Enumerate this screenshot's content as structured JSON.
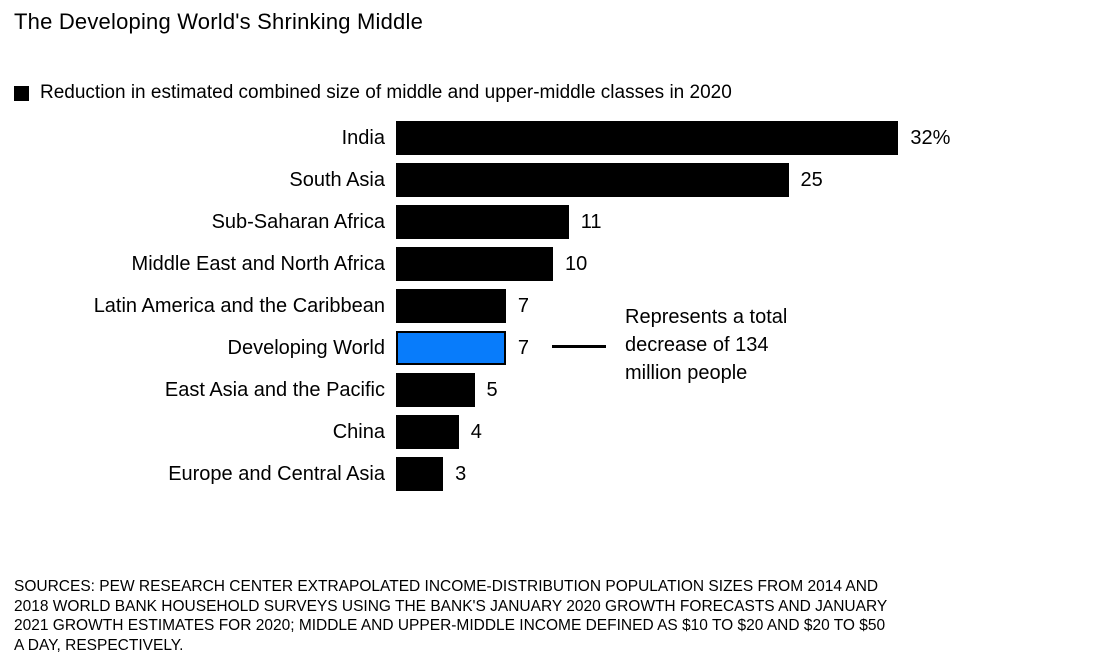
{
  "header": {
    "title": "The Developing World's Shrinking Middle"
  },
  "legend": {
    "swatch_color": "#000000",
    "label": "Reduction in estimated combined size of middle and upper-middle classes in 2020"
  },
  "chart_data": {
    "type": "bar",
    "orientation": "horizontal",
    "title": "The Developing World's Shrinking Middle",
    "legend_label": "Reduction in estimated combined size of middle and upper-middle classes in 2020",
    "unit": "percent",
    "categories": [
      "India",
      "South Asia",
      "Sub-Saharan Africa",
      "Middle East and North Africa",
      "Latin America and the Caribbean",
      "Developing World",
      "East Asia and the Pacific",
      "China",
      "Europe and Central Asia"
    ],
    "values": [
      32,
      25,
      11,
      10,
      7,
      7,
      5,
      4,
      3
    ],
    "value_labels": [
      "32%",
      "25",
      "11",
      "10",
      "7",
      "7",
      "5",
      "4",
      "3"
    ],
    "xlim": [
      0,
      32
    ],
    "grid": false,
    "legend_position": "top-left",
    "bar_color": "#000000",
    "highlight": {
      "category": "Developing World",
      "index": 5,
      "color": "#087cfb",
      "border_color": "#000000"
    },
    "annotation": {
      "text": "Represents a total decrease of 134 million people",
      "lines": [
        "Represents a total",
        "decrease of 134",
        "million people"
      ],
      "target_category": "Developing World"
    }
  },
  "footer": {
    "source_lines": [
      "SOURCES: PEW RESEARCH CENTER EXTRAPOLATED INCOME-DISTRIBUTION POPULATION SIZES FROM 2014 AND",
      "2018 WORLD BANK HOUSEHOLD SURVEYS USING THE BANK'S JANUARY 2020 GROWTH FORECASTS AND JANUARY",
      "2021 GROWTH ESTIMATES FOR 2020; MIDDLE AND UPPER-MIDDLE INCOME DEFINED AS $10 TO $20 AND $20 TO $50",
      "A DAY, RESPECTIVELY."
    ]
  }
}
